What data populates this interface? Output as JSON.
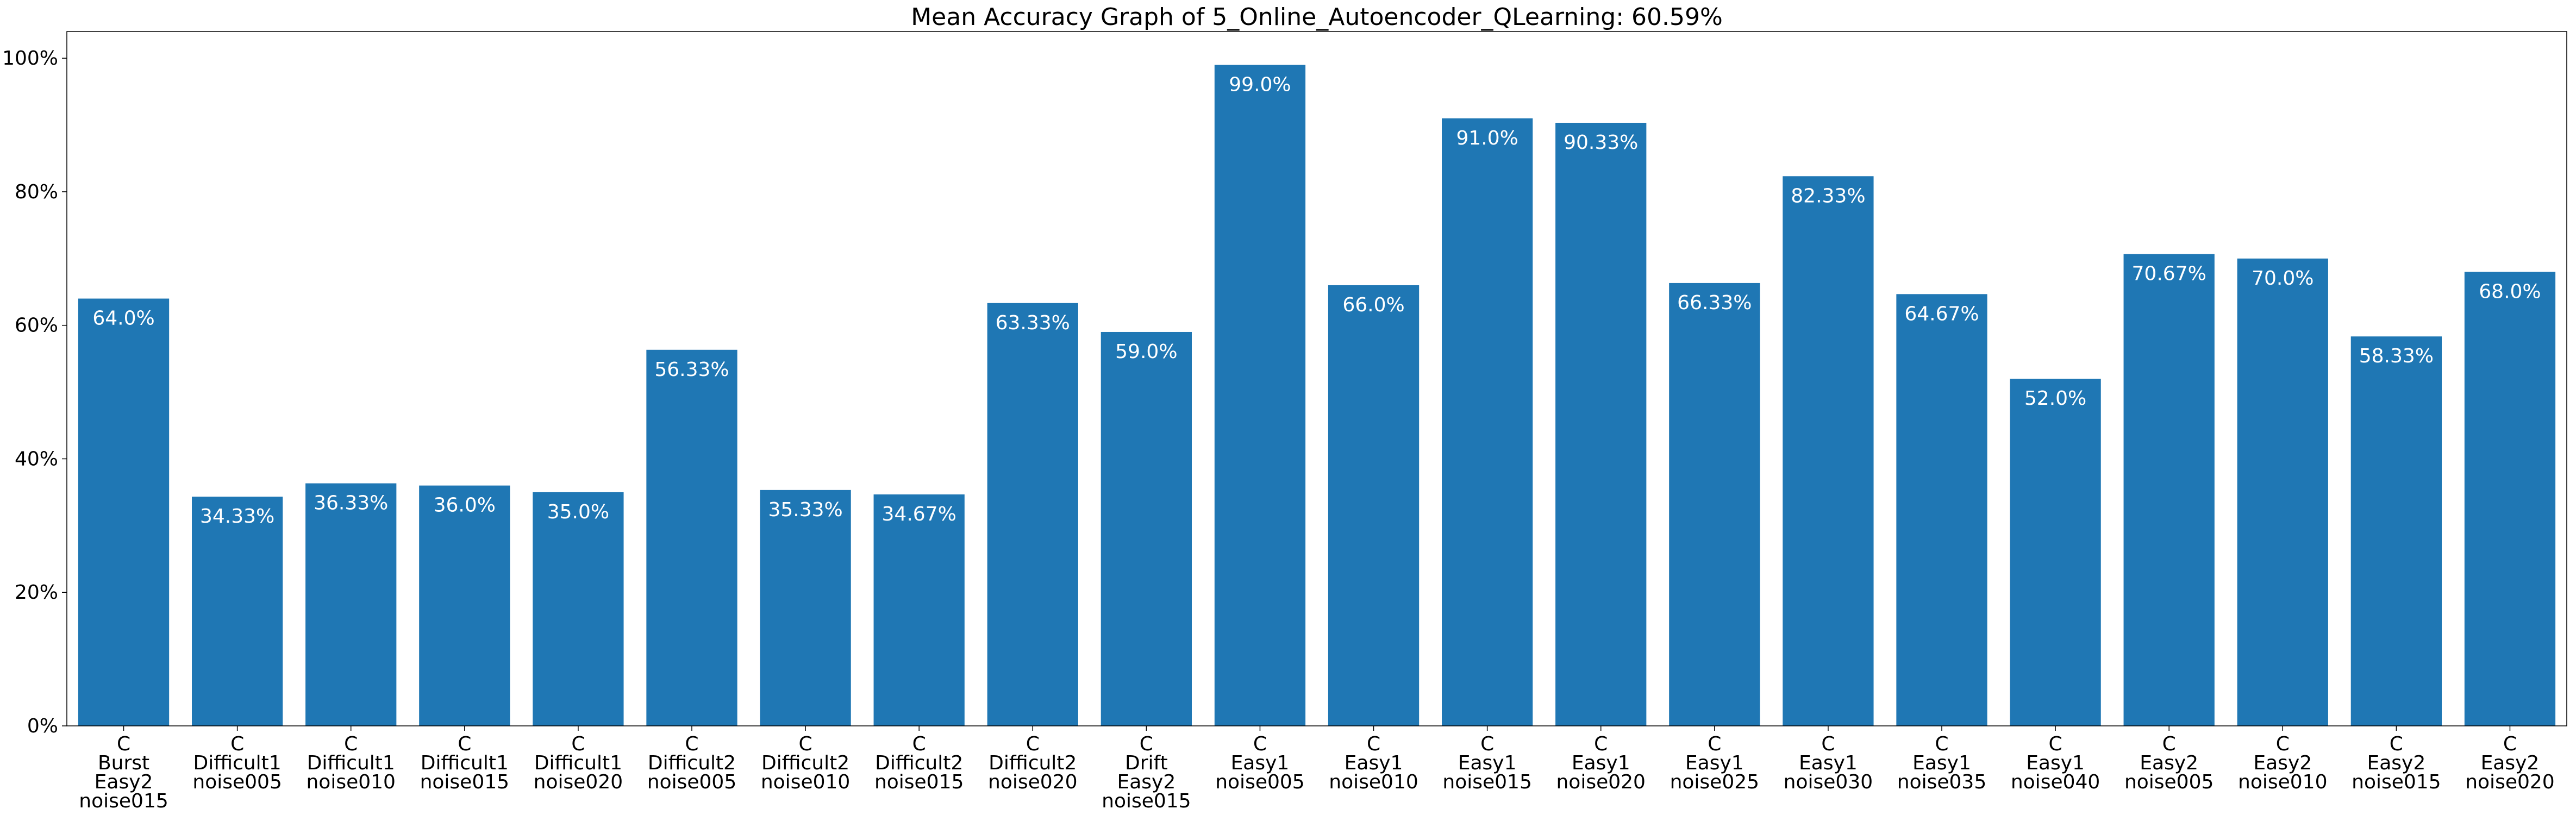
{
  "chart_data": {
    "type": "bar",
    "title": "Mean Accuracy Graph of 5_Online_Autoencoder_QLearning: 60.59%",
    "xlabel": "",
    "ylabel": "",
    "ylim": [
      0,
      104
    ],
    "yticks": [
      0,
      20,
      40,
      60,
      80,
      100
    ],
    "ytick_labels": [
      "0%",
      "20%",
      "40%",
      "60%",
      "80%",
      "100%"
    ],
    "grid": false,
    "bar_color": "#1f77b4",
    "label_color": "#ffffff",
    "categories": [
      "C\nBurst\nEasy2\nnoise015",
      "C\nDifficult1\nnoise005",
      "C\nDifficult1\nnoise010",
      "C\nDifficult1\nnoise015",
      "C\nDifficult1\nnoise020",
      "C\nDifficult2\nnoise005",
      "C\nDifficult2\nnoise010",
      "C\nDifficult2\nnoise015",
      "C\nDifficult2\nnoise020",
      "C\nDrift\nEasy2\nnoise015",
      "C\nEasy1\nnoise005",
      "C\nEasy1\nnoise010",
      "C\nEasy1\nnoise015",
      "C\nEasy1\nnoise020",
      "C\nEasy1\nnoise025",
      "C\nEasy1\nnoise030",
      "C\nEasy1\nnoise035",
      "C\nEasy1\nnoise040",
      "C\nEasy2\nnoise005",
      "C\nEasy2\nnoise010",
      "C\nEasy2\nnoise015",
      "C\nEasy2\nnoise020"
    ],
    "values": [
      64.0,
      34.33,
      36.33,
      36.0,
      35.0,
      56.33,
      35.33,
      34.67,
      63.33,
      59.0,
      99.0,
      66.0,
      91.0,
      90.33,
      66.33,
      82.33,
      64.67,
      52.0,
      70.67,
      70.0,
      58.33,
      68.0
    ],
    "data_labels": [
      "64.0%",
      "34.33%",
      "36.33%",
      "36.0%",
      "35.0%",
      "56.33%",
      "35.33%",
      "34.67%",
      "63.33%",
      "59.0%",
      "99.0%",
      "66.0%",
      "91.0%",
      "90.33%",
      "66.33%",
      "82.33%",
      "64.67%",
      "52.0%",
      "70.67%",
      "70.0%",
      "58.33%",
      "68.0%"
    ]
  }
}
